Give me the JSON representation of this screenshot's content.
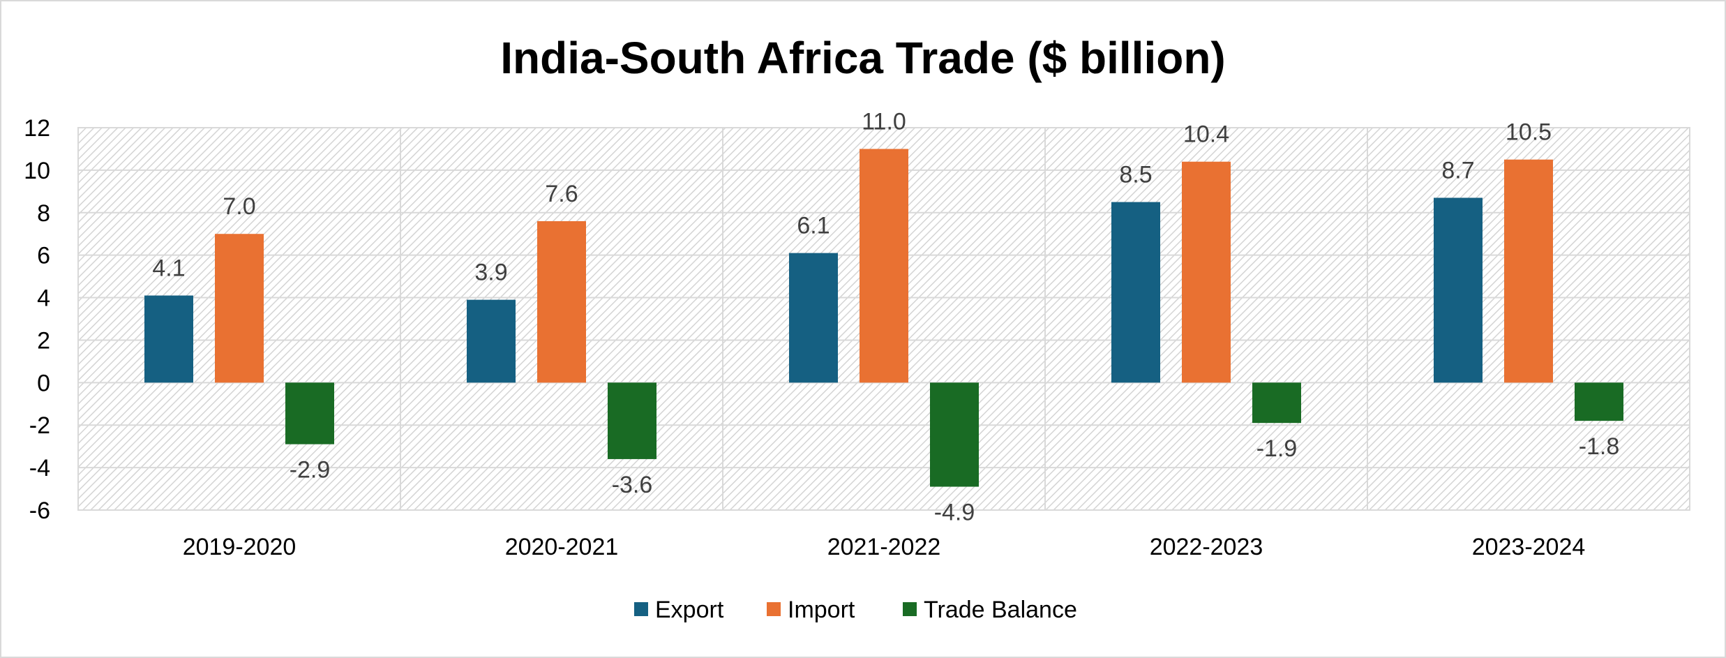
{
  "chart_data": {
    "type": "bar",
    "title": "India-South Africa Trade ($ billion)",
    "xlabel": "",
    "ylabel": "",
    "categories": [
      "2019-2020",
      "2020-2021",
      "2021-2022",
      "2022-2023",
      "2023-2024"
    ],
    "series": [
      {
        "name": "Export",
        "color": "#156082",
        "values": [
          4.1,
          3.9,
          6.1,
          8.5,
          8.7
        ],
        "labels": [
          "4.1",
          "3.9",
          "6.1",
          "8.5",
          "8.7"
        ]
      },
      {
        "name": "Import",
        "color": "#E97132",
        "values": [
          7.0,
          7.6,
          11.0,
          10.4,
          10.5
        ],
        "labels": [
          "7.0",
          "7.6",
          "11.0",
          "10.4",
          "10.5"
        ]
      },
      {
        "name": "Trade Balance",
        "color": "#196B24",
        "values": [
          -2.9,
          -3.6,
          -4.9,
          -1.9,
          -1.8
        ],
        "labels": [
          "-2.9",
          "-3.6",
          "-4.9",
          "-1.9",
          "-1.8"
        ]
      }
    ],
    "ylim": [
      -6,
      12
    ],
    "yticks": [
      12,
      10,
      8,
      6,
      4,
      2,
      0,
      -2,
      -4,
      -6
    ],
    "grid": true,
    "legend": "bottom",
    "background": "hatched"
  }
}
